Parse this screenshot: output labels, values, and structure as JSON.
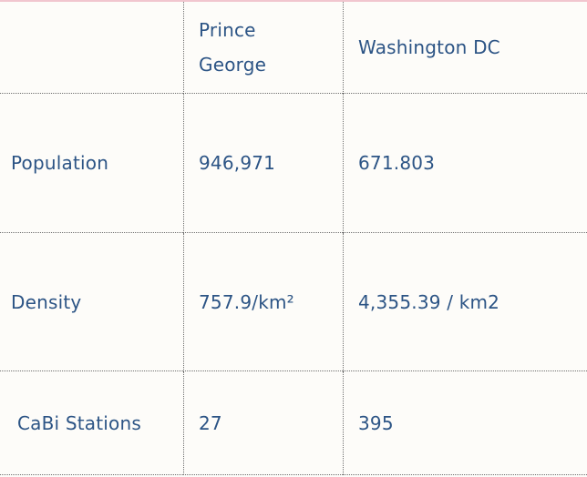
{
  "table": {
    "headers": [
      "",
      "Prince\nGeorge",
      "Washington DC"
    ],
    "header_lines": {
      "pg_line1": "Prince",
      "pg_line2": "George"
    },
    "rows": [
      {
        "label": "Population",
        "prince_george": "946,971",
        "washington_dc": "671.803"
      },
      {
        "label": "Density",
        "prince_george": "757.9/km²",
        "washington_dc": "4,355.39 / km2"
      },
      {
        "label": "CaBi Stations",
        "prince_george": "27",
        "washington_dc": "395"
      }
    ]
  },
  "colors": {
    "text": "#2c5485",
    "background": "#fdfcf9",
    "top_border": "#f1c6cf",
    "grid_line": "#6f6f6f"
  }
}
